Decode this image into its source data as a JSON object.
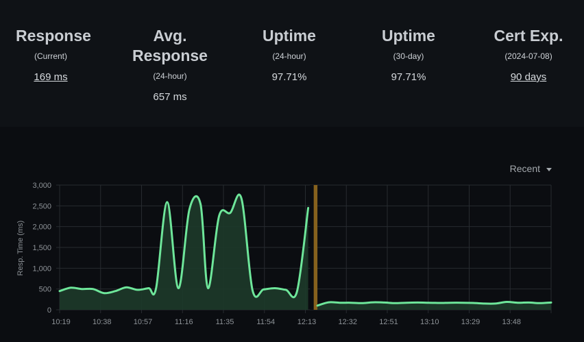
{
  "stats": [
    {
      "title": "Response",
      "subtitle": "(Current)",
      "value": "169 ms",
      "link": true
    },
    {
      "title": "Avg. Response",
      "subtitle": "(24-hour)",
      "value": "657 ms",
      "link": false
    },
    {
      "title": "Uptime",
      "subtitle": "(24-hour)",
      "value": "97.71%",
      "link": false
    },
    {
      "title": "Uptime",
      "subtitle": "(30-day)",
      "value": "97.71%",
      "link": false
    },
    {
      "title": "Cert Exp.",
      "subtitle": "(2024-07-08)",
      "value": "90 days",
      "link": true
    }
  ],
  "range_selector": {
    "label": "Recent"
  },
  "colors": {
    "line": "#6ee69a",
    "fill": "#1d3a2a",
    "down_bar": "#86611d",
    "grid": "#272b30",
    "axis_text": "#8e9398"
  },
  "chart_data": {
    "type": "area",
    "ylabel": "Resp. Time (ms)",
    "ylim": [
      0,
      3000
    ],
    "yticks": [
      "0",
      "500",
      "1,000",
      "1,500",
      "2,000",
      "2,500",
      "3,000"
    ],
    "xticks": [
      "10:19",
      "10:38",
      "10:57",
      "11:16",
      "11:35",
      "11:54",
      "12:13",
      "12:32",
      "12:51",
      "13:10",
      "13:29",
      "13:48"
    ],
    "series": [
      {
        "segments": [
          [
            [
              0,
              450
            ],
            [
              6,
              530
            ],
            [
              12,
              500
            ],
            [
              18,
              500
            ],
            [
              24,
              400
            ],
            [
              30,
              450
            ],
            [
              36,
              540
            ],
            [
              42,
              480
            ],
            [
              48,
              520
            ],
            [
              52,
              520
            ],
            [
              58,
              2590
            ],
            [
              64,
              520
            ],
            [
              70,
              2420
            ],
            [
              76,
              2540
            ],
            [
              80,
              520
            ],
            [
              86,
              2260
            ],
            [
              92,
              2330
            ],
            [
              98,
              2680
            ],
            [
              104,
              470
            ],
            [
              110,
              490
            ],
            [
              116,
              520
            ],
            [
              122,
              480
            ],
            [
              128,
              440
            ],
            [
              134,
              2450
            ]
          ],
          [
            [
              139,
              100
            ],
            [
              145,
              180
            ],
            [
              151,
              170
            ],
            [
              157,
              170
            ],
            [
              163,
              160
            ],
            [
              169,
              180
            ],
            [
              175,
              175
            ],
            [
              181,
              160
            ],
            [
              187,
              170
            ],
            [
              193,
              175
            ],
            [
              199,
              170
            ],
            [
              205,
              165
            ],
            [
              211,
              170
            ],
            [
              217,
              170
            ],
            [
              223,
              165
            ],
            [
              229,
              150
            ],
            [
              235,
              150
            ],
            [
              241,
              190
            ],
            [
              247,
              170
            ],
            [
              253,
              175
            ],
            [
              259,
              160
            ],
            [
              265,
              175
            ]
          ]
        ]
      }
    ],
    "downtime": [
      [
        135,
        137
      ],
      [
        137,
        139
      ]
    ],
    "x_total": 265
  }
}
